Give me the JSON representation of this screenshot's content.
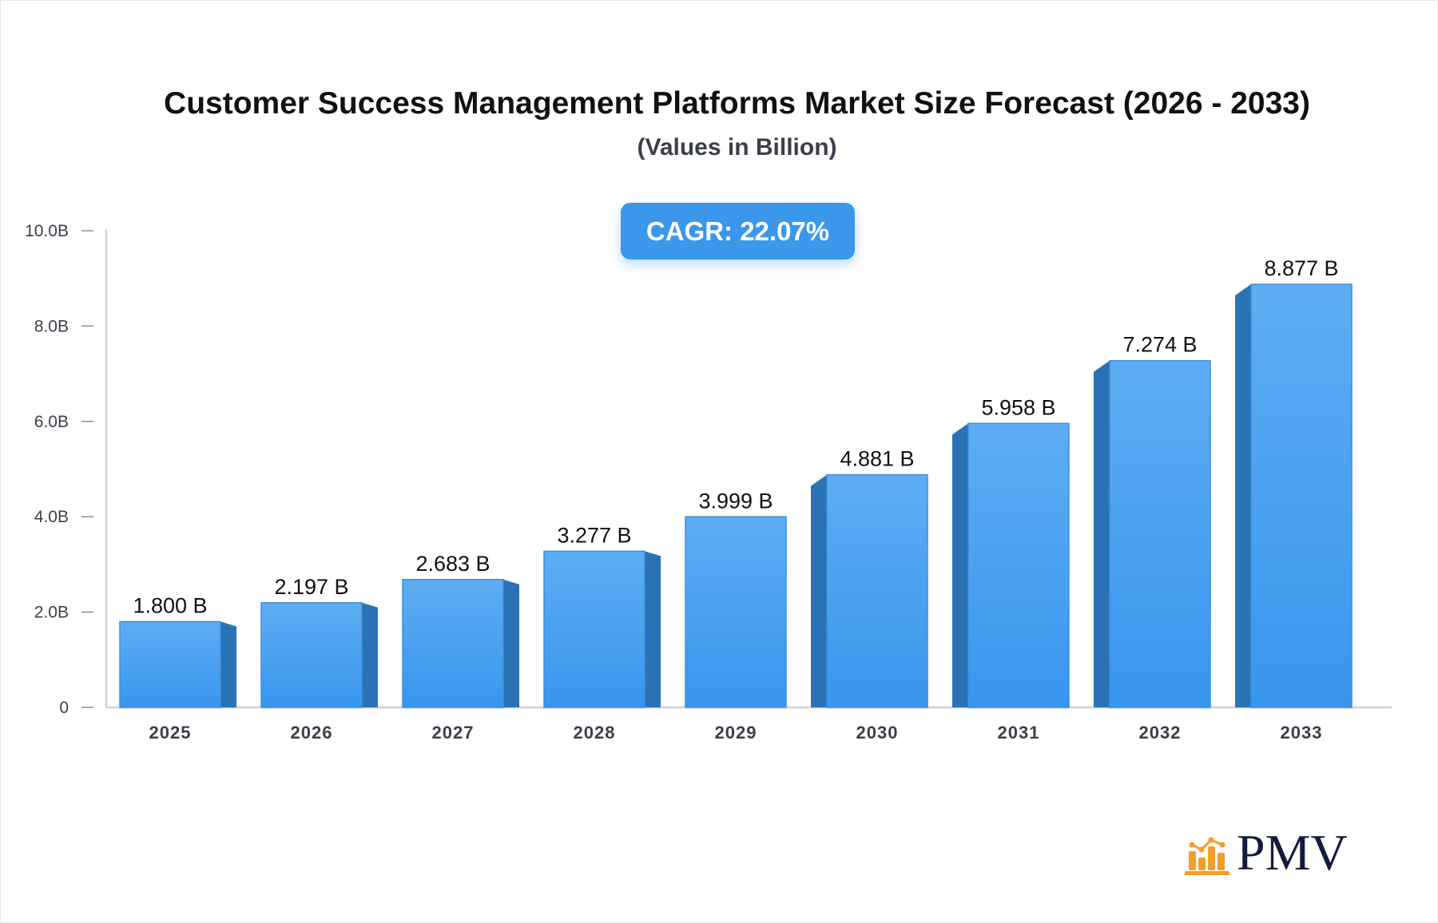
{
  "chart_data": {
    "type": "bar",
    "title": "Customer Success Management Platforms Market Size Forecast (2026 - 2033)",
    "subtitle": "(Values in Billion)",
    "annotation": "CAGR: 22.07%",
    "categories": [
      "2025",
      "2026",
      "2027",
      "2028",
      "2029",
      "2030",
      "2031",
      "2032",
      "2033"
    ],
    "values": [
      1.8,
      2.197,
      2.683,
      3.277,
      3.999,
      4.881,
      5.958,
      7.274,
      8.877
    ],
    "data_labels": [
      "1.800 B",
      "2.197 B",
      "2.683 B",
      "3.277 B",
      "3.999 B",
      "4.881 B",
      "5.958 B",
      "7.274 B",
      "8.877 B"
    ],
    "ylim": [
      0,
      10
    ],
    "yticks": [
      0,
      2,
      4,
      6,
      8,
      10
    ],
    "ytick_labels": [
      "0",
      "2.0B",
      "4.0B",
      "6.0B",
      "8.0B",
      "10.0B"
    ],
    "xlabel": "",
    "ylabel": "",
    "grid": false,
    "colors": {
      "bar_top": "#5eadf3",
      "bar_bottom": "#3896ed",
      "bar_side": "#2b72b5",
      "axis": "#d4d6dc"
    }
  },
  "logo": {
    "text": "PMV",
    "color": "#141a3e",
    "icon_color": "#f59d2a"
  }
}
